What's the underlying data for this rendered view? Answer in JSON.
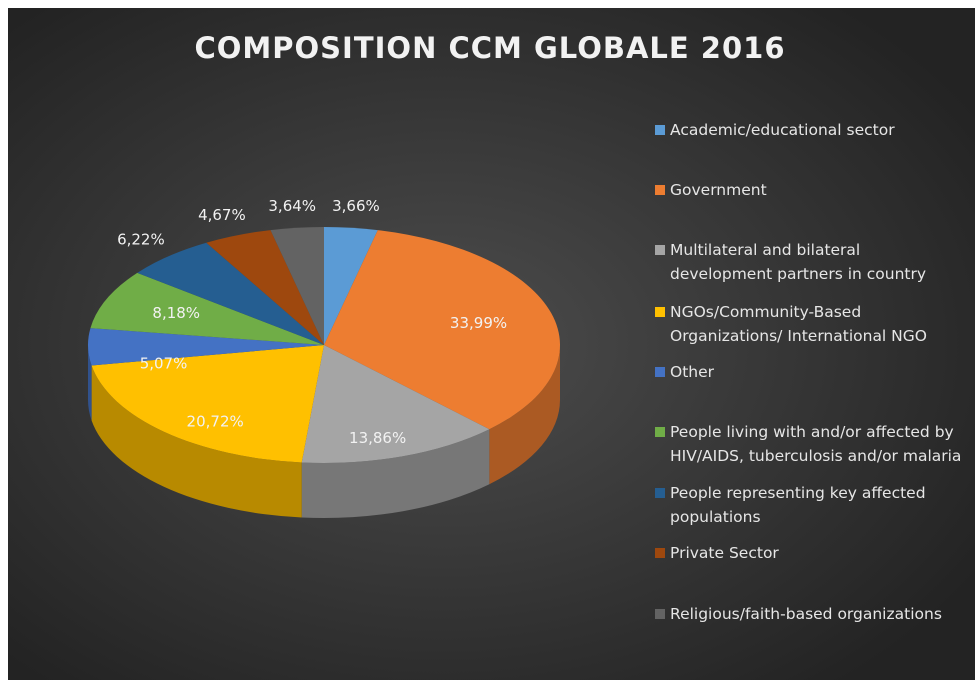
{
  "chart_data": {
    "type": "pie",
    "title": "COMPOSITION CCM GLOBALE 2016",
    "categories": [
      "Academic/educational sector",
      "Government",
      "Multilateral and bilateral\ndevelopment partners in country",
      "NGOs/Community-Based\nOrganizations/ International NGO",
      "Other",
      "People living with and/or affected by\nHIV/AIDS, tuberculosis and/or malaria",
      "People representing key affected\npopulations",
      "Private Sector",
      "Religious/faith-based organizations"
    ],
    "values": [
      3.66,
      33.99,
      13.86,
      20.72,
      5.07,
      8.18,
      6.22,
      4.67,
      3.64
    ],
    "value_labels": [
      "3,66%",
      "33,99%",
      "13,86%",
      "20,72%",
      "5,07%",
      "8,18%",
      "6,22%",
      "4,67%",
      "3,64%"
    ],
    "colors": [
      "#5b9bd5",
      "#ed7d31",
      "#a5a5a5",
      "#ffc000",
      "#4472c4",
      "#70ad47",
      "#255e91",
      "#9e480e",
      "#636363"
    ],
    "legend": "right"
  }
}
